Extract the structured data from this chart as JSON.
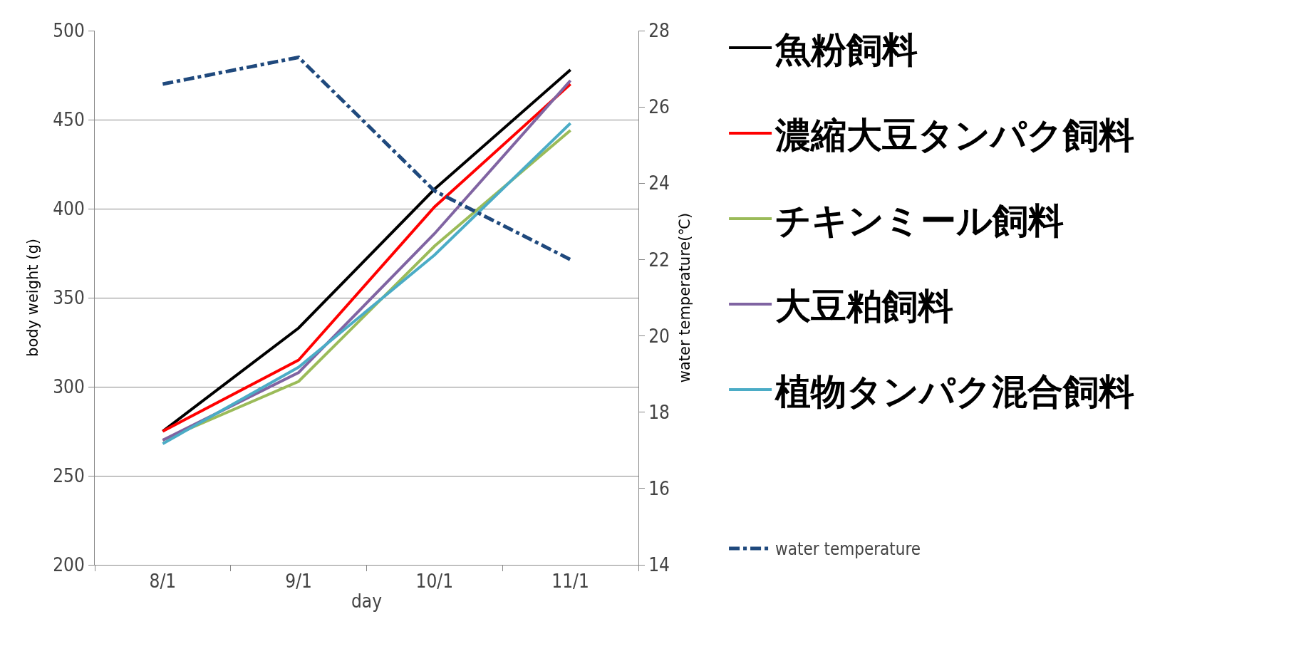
{
  "chart_data": {
    "type": "line",
    "xlabel": "day",
    "ylabel": "body weight (g)",
    "y2label": "water temperature(℃)",
    "categories": [
      "8/1",
      "9/1",
      "10/1",
      "11/1"
    ],
    "series": [
      {
        "name": "魚粉飼料",
        "color": "#000000",
        "values": [
          275,
          333,
          411,
          478
        ]
      },
      {
        "name": "濃縮大豆タンパク飼料",
        "color": "#ff0000",
        "values": [
          275,
          315,
          401,
          470
        ]
      },
      {
        "name": "チキンミール飼料",
        "color": "#9bbb59",
        "values": [
          270,
          303,
          379,
          444
        ]
      },
      {
        "name": "大豆粕飼料",
        "color": "#8064a2",
        "values": [
          270,
          308,
          386,
          472
        ]
      },
      {
        "name": "植物タンパク混合飼料",
        "color": "#4bacc6",
        "values": [
          268,
          311,
          374,
          448
        ]
      },
      {
        "name": "water temperature",
        "color": "#1f497d",
        "values": [
          26.6,
          27.3,
          23.8,
          22.0
        ],
        "axis": "y2",
        "line_style": "dashed"
      }
    ],
    "ylim": [
      200,
      500
    ],
    "yticks": [
      200,
      250,
      300,
      350,
      400,
      450,
      500
    ],
    "y2lim": [
      14,
      28
    ],
    "y2ticks": [
      14,
      16,
      18,
      20,
      22,
      24,
      26,
      28
    ],
    "grid": "y",
    "legend": "right",
    "marker": "none",
    "line_style": "solid"
  }
}
